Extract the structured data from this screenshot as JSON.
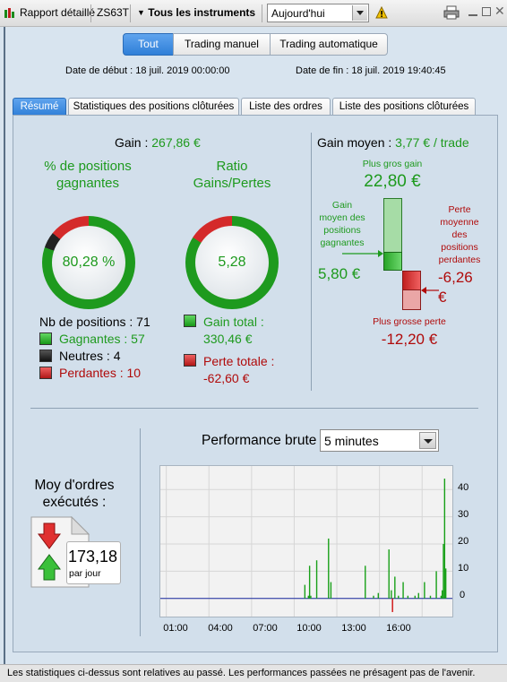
{
  "toolbar": {
    "report_label": "Rapport détaillé",
    "account": "ZS63T",
    "instruments": "Tous les instruments",
    "period": "Aujourd'hui"
  },
  "filter": {
    "all": "Tout",
    "manual": "Trading manuel",
    "auto": "Trading automatique"
  },
  "dates": {
    "start": "Date de début :  18 juil. 2019 00:00:00",
    "end": "Date de fin :  18 juil. 2019 19:40:45"
  },
  "tabs": [
    "Résumé",
    "Statistiques des positions clôturées",
    "Liste des ordres",
    "Liste des positions clôturées"
  ],
  "summary": {
    "gain_label": "Gain :",
    "gain_value": "267,86 €",
    "win_pct_title": "% de positions gagnantes",
    "win_pct": "80,28 %",
    "ratio_title": "Ratio Gains/Pertes",
    "ratio": "5,28",
    "positions_label": "Nb de positions : 71",
    "winning": "Gagnantes : 57",
    "neutral": "Neutres : 4",
    "losing": "Perdantes : 10",
    "total_gain": "Gain total : 330,46 €",
    "total_loss": "Perte totale : -62,60 €",
    "win_fraction": 0.8028,
    "neutral_fraction": 0.0563,
    "loss_fraction": 0.1408,
    "ratio_gain_fraction": 0.8407
  },
  "avg_gain": {
    "label": "Gain moyen :",
    "value": "3,77 € / trade",
    "max_gain_label": "Plus gros gain",
    "max_gain": "22,80 €",
    "avg_win_label": "Gain moyen des positions gagnantes",
    "avg_win": "5,80 €",
    "avg_loss_label": "Perte moyenne des positions perdantes",
    "avg_loss": "-6,26 €",
    "max_loss_label": "Plus grosse perte",
    "max_loss": "-12,20 €"
  },
  "orders": {
    "title": "Moy d'ordres exécutés :",
    "value": "173,18",
    "unit": "par jour"
  },
  "performance": {
    "title": "Performance brute",
    "resolution": "5 minutes"
  },
  "chart_data": {
    "type": "bar",
    "title": "Performance brute",
    "x_ticks": [
      "01:00",
      "04:00",
      "07:00",
      "10:00",
      "13:00",
      "16:00"
    ],
    "y_ticks": [
      "0",
      "10",
      "20",
      "30",
      "40"
    ],
    "ylim": [
      -6,
      46
    ],
    "x": [
      "09:45",
      "10:00",
      "10:05",
      "10:10",
      "10:35",
      "11:25",
      "11:35",
      "14:00",
      "14:35",
      "14:55",
      "15:40",
      "15:50",
      "15:55",
      "16:05",
      "16:20",
      "16:40",
      "17:00",
      "17:30",
      "17:45",
      "18:10",
      "18:35",
      "19:00",
      "19:20",
      "19:25",
      "19:30",
      "19:35",
      "19:40"
    ],
    "values": [
      5,
      1,
      12,
      1,
      14,
      22,
      6,
      12,
      1,
      2,
      18,
      3,
      -5,
      8,
      1,
      6,
      1,
      1,
      2,
      6,
      1,
      10,
      1,
      3,
      20,
      44,
      11
    ]
  },
  "status_text": "Les statistiques ci-dessus sont relatives au passé. Les performances passées ne présagent pas de l'avenir.",
  "colors": {
    "gain": "#1e9a1e",
    "loss": "#b00a0a",
    "accent": "#2f7fd8"
  }
}
